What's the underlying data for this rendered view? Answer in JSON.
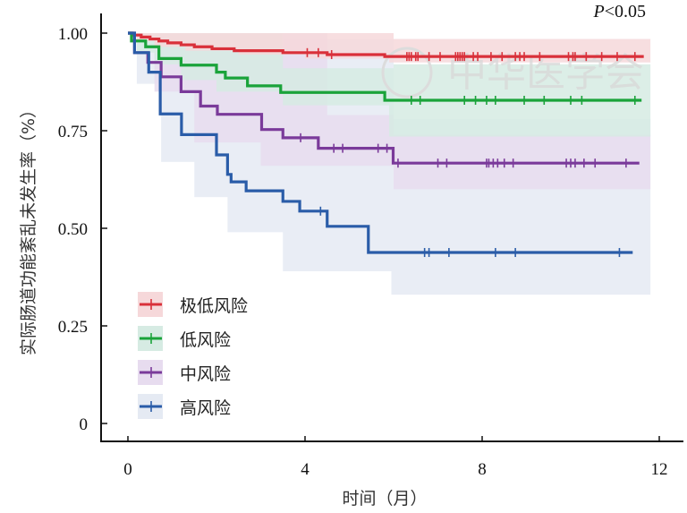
{
  "chart_data": {
    "type": "line",
    "subtype": "kaplan-meier",
    "title": "",
    "annotation": {
      "prefix": "P",
      "text": "<0.05"
    },
    "xlabel": "时间（月）",
    "ylabel": "实际肠道功能紊乱未发生率（%）",
    "xlim": [
      -0.6,
      12.6
    ],
    "ylim": [
      -0.05,
      1.05
    ],
    "xticks": [
      0,
      4,
      8,
      12
    ],
    "xtick_labels": [
      "0",
      "4",
      "8",
      "12"
    ],
    "yticks": [
      0,
      0.25,
      0.5,
      0.75,
      1.0
    ],
    "ytick_labels": [
      "0",
      "0.25",
      "0.50",
      "0.75",
      "1.00"
    ],
    "grid": false,
    "legend_position": "bottom-left",
    "watermark": "中华医学会",
    "series": [
      {
        "name": "极低风险",
        "color": "#d9303a",
        "band_color": "#f6d8da",
        "steps": [
          [
            0,
            1.0
          ],
          [
            0.1,
            0.995
          ],
          [
            0.3,
            0.99
          ],
          [
            0.5,
            0.985
          ],
          [
            0.7,
            0.98
          ],
          [
            0.9,
            0.975
          ],
          [
            1.2,
            0.97
          ],
          [
            1.5,
            0.965
          ],
          [
            1.9,
            0.96
          ],
          [
            2.4,
            0.955
          ],
          [
            3.5,
            0.95
          ],
          [
            4.5,
            0.945
          ],
          [
            5.8,
            0.94
          ]
        ],
        "end": 11.65,
        "ci_lower": [
          [
            0,
            1.0
          ],
          [
            0.2,
            0.98
          ],
          [
            0.6,
            0.965
          ],
          [
            1.3,
            0.955
          ],
          [
            2.5,
            0.945
          ],
          [
            4.0,
            0.935
          ],
          [
            5.9,
            0.925
          ]
        ],
        "ci_upper": [
          [
            0,
            1.0
          ],
          [
            6.0,
            0.985
          ]
        ],
        "censored": [
          4.05,
          4.3,
          4.6,
          6.3,
          6.35,
          6.4,
          6.5,
          6.55,
          6.8,
          7.05,
          7.4,
          7.45,
          7.5,
          7.55,
          7.6,
          7.8,
          7.9,
          8.2,
          8.45,
          8.75,
          8.85,
          8.95,
          9.3,
          9.95,
          10.05,
          10.1,
          10.35,
          10.7,
          11.05,
          11.45
        ]
      },
      {
        "name": "低风险",
        "color": "#1aa33a",
        "band_color": "#d6ebe3",
        "steps": [
          [
            0,
            1.0
          ],
          [
            0.08,
            0.98
          ],
          [
            0.4,
            0.965
          ],
          [
            0.7,
            0.935
          ],
          [
            1.2,
            0.918
          ],
          [
            2.0,
            0.9
          ],
          [
            2.2,
            0.885
          ],
          [
            2.7,
            0.865
          ],
          [
            3.45,
            0.848
          ],
          [
            5.8,
            0.828
          ]
        ],
        "end": 11.6,
        "ci_lower": [
          [
            0,
            1.0
          ],
          [
            0.2,
            0.95
          ],
          [
            0.6,
            0.92
          ],
          [
            1.2,
            0.88
          ],
          [
            2.0,
            0.85
          ],
          [
            3.5,
            0.815
          ],
          [
            5.9,
            0.735
          ]
        ],
        "ci_upper": [
          [
            0,
            1.0
          ],
          [
            3.5,
            0.91
          ],
          [
            6.0,
            0.92
          ]
        ],
        "censored": [
          6.4,
          6.6,
          7.6,
          7.85,
          8.1,
          8.3,
          8.95,
          9.4,
          10.0,
          10.25,
          11.45
        ]
      },
      {
        "name": "中风险",
        "color": "#7a3a9a",
        "band_color": "#e7dcef",
        "steps": [
          [
            0,
            1.0
          ],
          [
            0.15,
            0.95
          ],
          [
            0.45,
            0.925
          ],
          [
            0.75,
            0.888
          ],
          [
            1.2,
            0.85
          ],
          [
            1.64,
            0.813
          ],
          [
            2.02,
            0.792
          ],
          [
            3.02,
            0.753
          ],
          [
            3.5,
            0.732
          ],
          [
            4.3,
            0.705
          ],
          [
            5.99,
            0.667
          ]
        ],
        "end": 11.55,
        "ci_lower": [],
        "ci_upper": [],
        "censored": [
          3.9,
          4.65,
          4.85,
          5.65,
          5.85,
          6.1,
          7.0,
          7.2,
          8.1,
          8.15,
          8.25,
          8.35,
          8.5,
          8.7,
          9.9,
          10.0,
          10.1,
          10.3,
          10.55,
          11.25
        ]
      },
      {
        "name": "高风险",
        "color": "#2a5ca8",
        "band_color": "#e5eaf3",
        "steps": [
          [
            0,
            1.0
          ],
          [
            0.15,
            0.95
          ],
          [
            0.47,
            0.9
          ],
          [
            0.73,
            0.793
          ],
          [
            1.21,
            0.74
          ],
          [
            2.0,
            0.688
          ],
          [
            2.25,
            0.638
          ],
          [
            2.33,
            0.619
          ],
          [
            2.67,
            0.596
          ],
          [
            3.5,
            0.569
          ],
          [
            3.88,
            0.544
          ],
          [
            4.5,
            0.505
          ],
          [
            5.43,
            0.438
          ]
        ],
        "end": 11.4,
        "ci_lower": [
          [
            0,
            1.0
          ],
          [
            0.2,
            0.87
          ],
          [
            0.75,
            0.67
          ],
          [
            1.5,
            0.58
          ],
          [
            2.25,
            0.49
          ],
          [
            3.5,
            0.39
          ],
          [
            5.95,
            0.33
          ]
        ],
        "ci_upper": [
          [
            0,
            1.0
          ],
          [
            0.2,
            0.985
          ],
          [
            6.0,
            0.78
          ]
        ],
        "censored": [
          4.35,
          6.7,
          6.8,
          7.25,
          8.3,
          8.75,
          11.1
        ]
      }
    ]
  }
}
